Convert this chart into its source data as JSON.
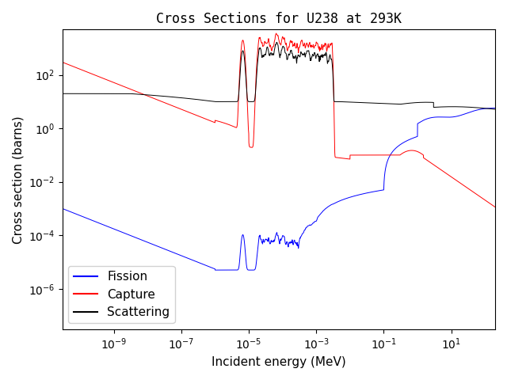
{
  "title": "Cross Sections for U238 at 293K",
  "xlabel": "Incident energy (MeV)",
  "ylabel": "Cross section (barns)",
  "xlim": [
    3e-11,
    200.0
  ],
  "ylim": [
    3e-08,
    5000.0
  ],
  "legend_labels": [
    "Fission",
    "Capture",
    "Scattering"
  ],
  "legend_colors": [
    "blue",
    "red",
    "black"
  ],
  "legend_loc": "lower left",
  "title_fontsize": 12,
  "label_fontsize": 11
}
